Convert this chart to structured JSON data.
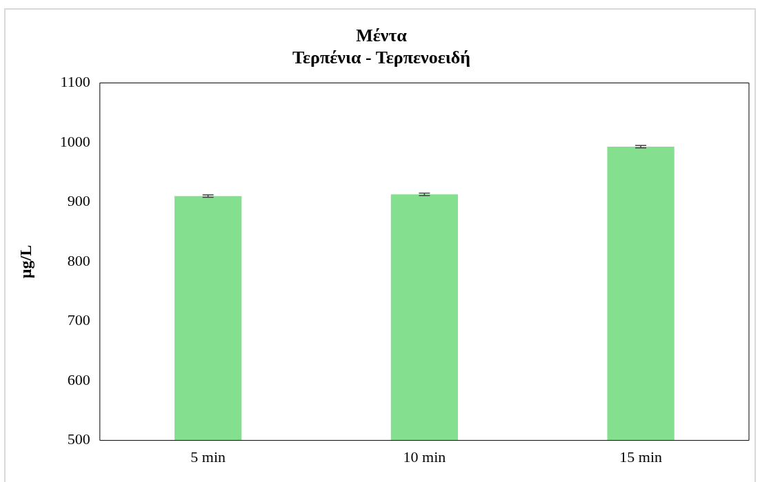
{
  "chart_data": {
    "type": "bar",
    "title": [
      "Μέντα",
      "Τερπένια - Τερπενοειδή"
    ],
    "ylabel": "μg/L",
    "categories": [
      "5 min",
      "10 min",
      "15 min"
    ],
    "values": [
      910,
      913,
      993
    ],
    "errors": [
      2,
      2,
      2
    ],
    "color": "#84e08f",
    "ylim": [
      500,
      1100
    ],
    "yticks": [
      500,
      600,
      700,
      800,
      900,
      1000,
      1100
    ],
    "grid": false,
    "legend": false
  }
}
